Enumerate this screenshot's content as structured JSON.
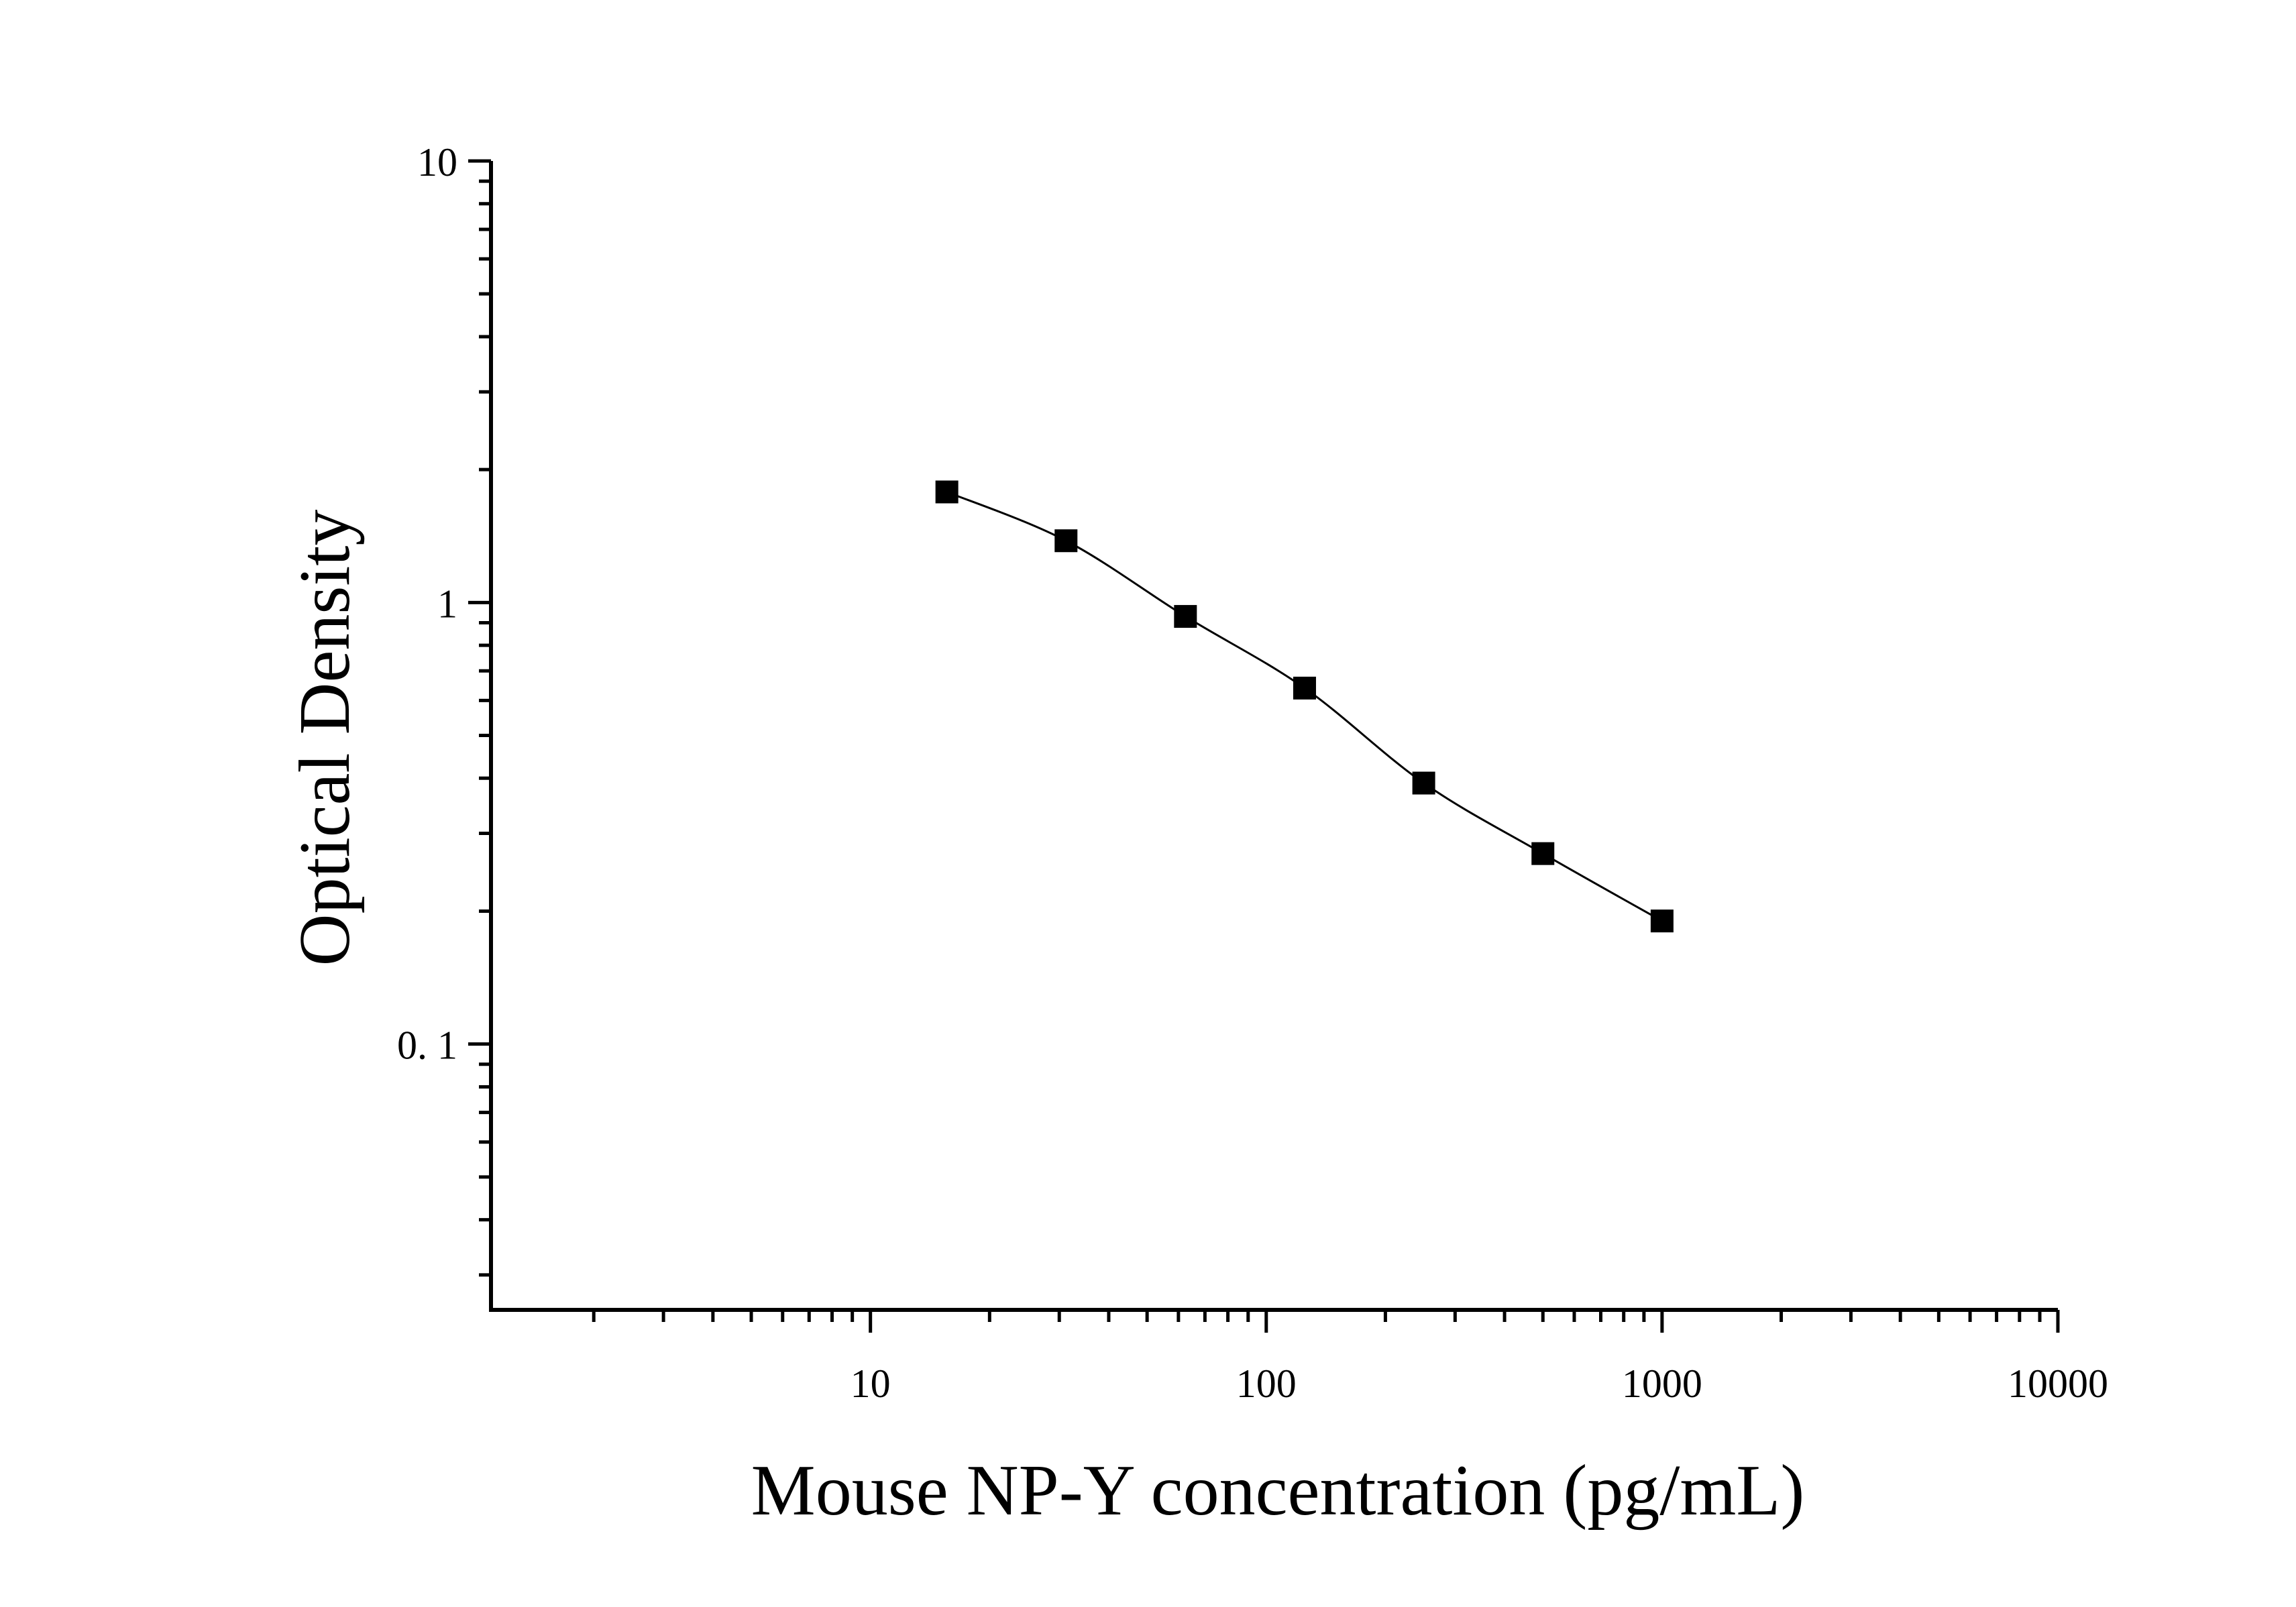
{
  "chart_data": {
    "type": "scatter",
    "title": "",
    "xlabel": "Mouse NP-Y concentration (pg/mL)",
    "ylabel": "Optical Density",
    "x_scale": "log",
    "y_scale": "log",
    "xlim": [
      1.1,
      10000
    ],
    "ylim": [
      0.025,
      10
    ],
    "x_tick_labels": [
      "10",
      "100",
      "1000",
      "10000"
    ],
    "y_tick_labels": [
      "10",
      "1",
      "0. 1"
    ],
    "grid": false,
    "legend": "none",
    "marker": "square",
    "color": "#000000",
    "series": [
      {
        "x": [
          15.6,
          31.2,
          62.5,
          125,
          250,
          500,
          1000
        ],
        "y": [
          1.78,
          1.38,
          0.93,
          0.64,
          0.39,
          0.27,
          0.19
        ],
        "fit_line": true
      }
    ]
  }
}
